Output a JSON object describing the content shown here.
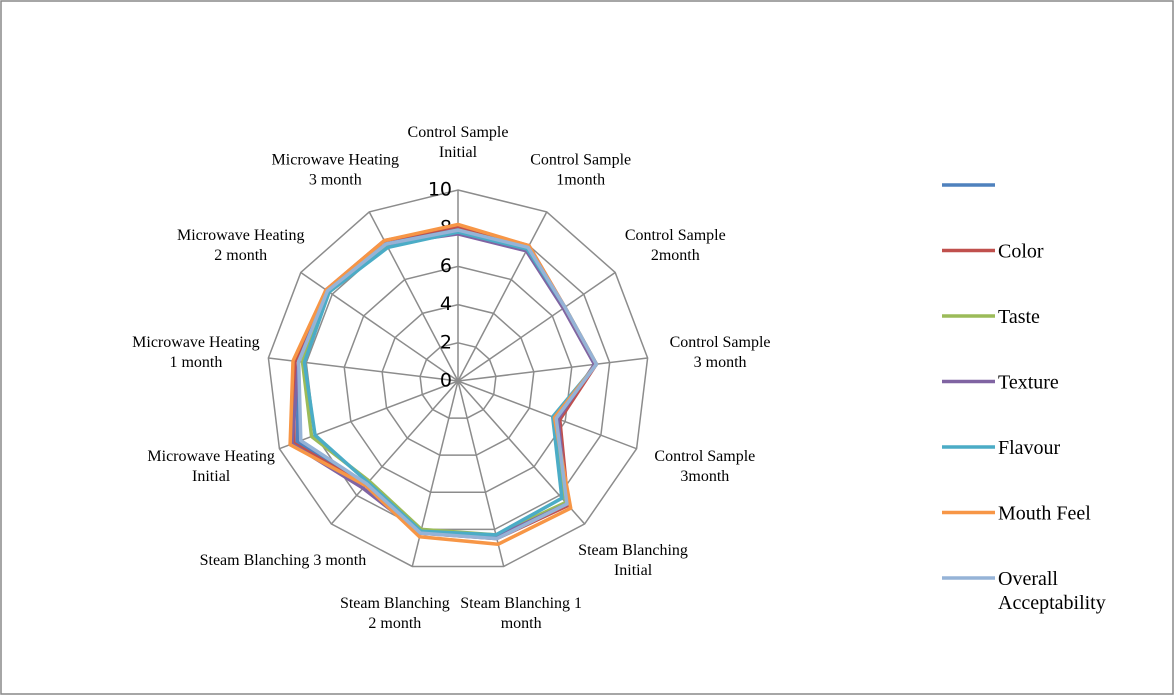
{
  "chart_data": {
    "type": "radar",
    "categories": [
      "Control Sample\nInitial",
      "Control Sample\n1month",
      "Control Sample\n2month",
      "Control Sample\n3 month",
      "Control Sample\n3month",
      "Steam Blanching\nInitial",
      "Steam Blanching 1\nmonth",
      "Steam Blanching\n2 month",
      "Steam Blanching 3 month",
      "Microwave Heating\nInitial",
      "Microwave Heating\n1 month",
      "Microwave Heating\n2 month",
      "Microwave Heating\n3 month"
    ],
    "ylim": [
      0,
      10
    ],
    "yticks": [
      0,
      2,
      4,
      6,
      8,
      10
    ],
    "grid": true,
    "series": [
      {
        "color": "#4f81bd",
        "values": [
          8.0,
          7.9,
          6.8,
          7.3,
          5.5,
          8.6,
          8.4,
          8.2,
          7.2,
          9.0,
          8.4,
          8.3,
          8.1
        ]
      },
      {
        "name": "Color",
        "color": "#c0504d",
        "values": [
          8.1,
          8.0,
          6.8,
          7.3,
          5.7,
          8.7,
          8.5,
          8.2,
          7.3,
          9.2,
          8.6,
          8.4,
          8.3
        ]
      },
      {
        "name": "Taste",
        "color": "#9bbb59",
        "values": [
          7.9,
          7.9,
          6.8,
          7.3,
          5.4,
          8.5,
          8.3,
          8.0,
          7.0,
          8.2,
          8.2,
          8.2,
          8.0
        ]
      },
      {
        "name": "Texture",
        "color": "#8064a2",
        "values": [
          7.7,
          7.7,
          6.7,
          7.2,
          5.6,
          8.6,
          8.4,
          8.2,
          7.5,
          9.3,
          8.4,
          8.4,
          8.1
        ]
      },
      {
        "name": "Flavour",
        "color": "#4bacc6",
        "values": [
          7.8,
          7.8,
          6.8,
          7.3,
          5.3,
          8.2,
          8.3,
          8.1,
          7.1,
          8.0,
          8.1,
          8.2,
          7.9
        ]
      },
      {
        "name": "Mouth Feel",
        "color": "#f79646",
        "values": [
          8.2,
          8.0,
          6.8,
          7.3,
          5.4,
          8.9,
          8.8,
          8.4,
          7.3,
          9.4,
          8.7,
          8.4,
          8.3
        ]
      },
      {
        "name": "Overall\nAcceptability",
        "color": "#95b3d7",
        "values": [
          7.9,
          7.9,
          6.8,
          7.3,
          5.5,
          8.6,
          8.5,
          8.2,
          7.2,
          8.8,
          8.4,
          8.3,
          8.1
        ]
      }
    ]
  }
}
